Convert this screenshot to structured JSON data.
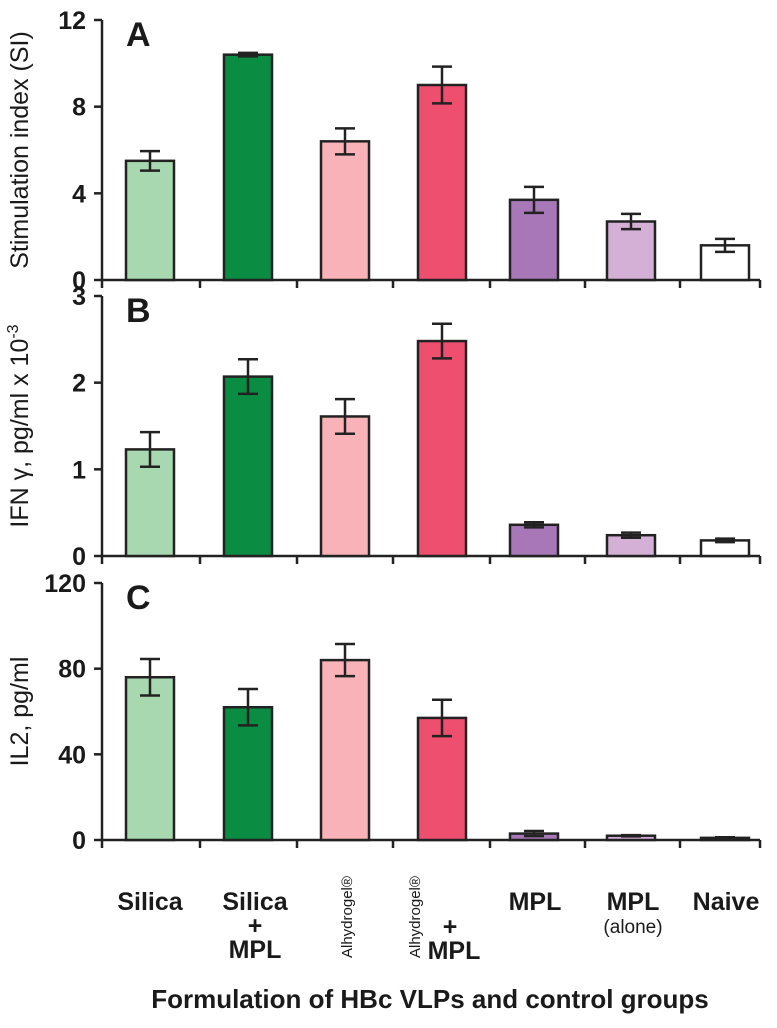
{
  "chart_data": [
    {
      "type": "bar",
      "panel": "A",
      "ylabel": "Stimulation index (SI)",
      "ylim": [
        0,
        12
      ],
      "yticks": [
        "0",
        "4",
        "8",
        "12"
      ],
      "categories": [
        "Silica",
        "Silica + MPL",
        "Alhydrogel®",
        "Alhydrogel® + MPL",
        "MPL",
        "MPL (alone)",
        "Naive"
      ],
      "values": [
        5.5,
        10.4,
        6.4,
        9.0,
        3.7,
        2.7,
        1.6
      ],
      "errors": [
        0.45,
        0.08,
        0.6,
        0.85,
        0.6,
        0.35,
        0.3
      ]
    },
    {
      "type": "bar",
      "panel": "B",
      "ylabel": "IFN γ, pg/ml x 10⁻³",
      "ylim": [
        0,
        3
      ],
      "yticks": [
        "0",
        "1",
        "2",
        "3"
      ],
      "categories": [
        "Silica",
        "Silica + MPL",
        "Alhydrogel®",
        "Alhydrogel® + MPL",
        "MPL",
        "MPL (alone)",
        "Naive"
      ],
      "values": [
        1.23,
        2.07,
        1.61,
        2.48,
        0.36,
        0.24,
        0.18
      ],
      "errors": [
        0.2,
        0.2,
        0.2,
        0.2,
        0.03,
        0.03,
        0.02
      ]
    },
    {
      "type": "bar",
      "panel": "C",
      "ylabel": "IL2, pg/ml",
      "ylim": [
        0,
        120
      ],
      "yticks": [
        "0",
        "40",
        "80",
        "120"
      ],
      "categories": [
        "Silica",
        "Silica + MPL",
        "Alhydrogel®",
        "Alhydrogel® + MPL",
        "MPL",
        "MPL (alone)",
        "Naive"
      ],
      "values": [
        76,
        62,
        84,
        57,
        3,
        2,
        1
      ],
      "errors": [
        8.5,
        8.5,
        7.5,
        8.5,
        1.2,
        0.3,
        0.3
      ]
    }
  ],
  "bar_colors": [
    "#a8d8b0",
    "#0a8c42",
    "#f9b3b8",
    "#ee4f6f",
    "#a877b8",
    "#d4afd6",
    "#ffffff"
  ],
  "x_axis": {
    "title": "Formulation of HBc VLPs and control groups",
    "labels": [
      {
        "line1": "Silica"
      },
      {
        "line1": "Silica",
        "line2": "+",
        "line3": "MPL"
      },
      {
        "rotated": "Alhydrogel®"
      },
      {
        "rotated": "Alhydrogel®",
        "line2": "+",
        "line3": "MPL"
      },
      {
        "line1": "MPL"
      },
      {
        "line1": "MPL",
        "line2": "(alone)"
      },
      {
        "line1": "Naive"
      }
    ]
  }
}
